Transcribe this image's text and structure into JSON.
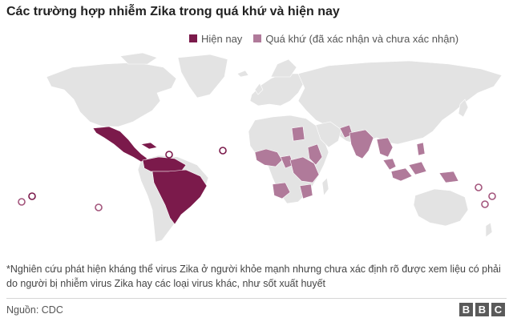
{
  "title": "Các trường hợp nhiễm Zika trong quá khứ và hiện nay",
  "legend": {
    "current_label": "Hiện nay",
    "past_label": "Quá khứ (đã xác nhận và chưa xác nhận)"
  },
  "colors": {
    "current": "#7b1a4b",
    "past": "#b07a9a",
    "land": "#e3e3e3",
    "circle_current": "#7b1a4b",
    "circle_past": "#a3557c"
  },
  "footnote": "*Nghiên cứu phát hiện kháng thể virus Zika ở người khỏe mạnh nhưng chưa xác định rõ được xem liệu có phải do người bị nhiễm virus Zika hay các loại virus khác, như sốt xuất huyết",
  "source": "Nguồn: CDC",
  "logo": {
    "letters": [
      "B",
      "B",
      "C"
    ]
  }
}
